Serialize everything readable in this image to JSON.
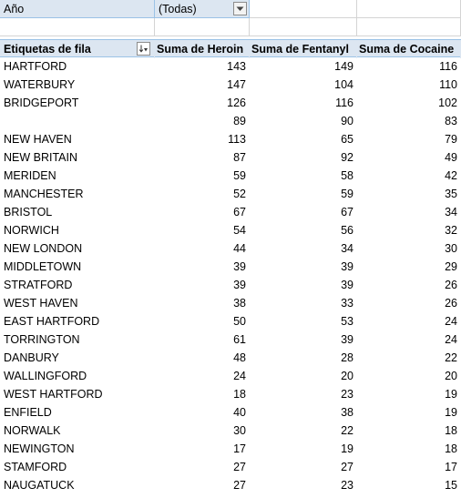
{
  "filter": {
    "field_label": "Año",
    "selected_value": "(Todas)"
  },
  "headers": {
    "row_labels": "Etiquetas de fila",
    "heroin": "Suma de Heroin",
    "fentanyl": "Suma de Fentanyl",
    "cocaine": "Suma de Cocaine"
  },
  "rows": [
    {
      "label": "HARTFORD",
      "heroin": "143",
      "fentanyl": "149",
      "cocaine": "116"
    },
    {
      "label": "WATERBURY",
      "heroin": "147",
      "fentanyl": "104",
      "cocaine": "110"
    },
    {
      "label": "BRIDGEPORT",
      "heroin": "126",
      "fentanyl": "116",
      "cocaine": "102"
    },
    {
      "label": "",
      "heroin": "89",
      "fentanyl": "90",
      "cocaine": "83"
    },
    {
      "label": "NEW HAVEN",
      "heroin": "113",
      "fentanyl": "65",
      "cocaine": "79"
    },
    {
      "label": "NEW BRITAIN",
      "heroin": "87",
      "fentanyl": "92",
      "cocaine": "49"
    },
    {
      "label": "MERIDEN",
      "heroin": "59",
      "fentanyl": "58",
      "cocaine": "42"
    },
    {
      "label": "MANCHESTER",
      "heroin": "52",
      "fentanyl": "59",
      "cocaine": "35"
    },
    {
      "label": "BRISTOL",
      "heroin": "67",
      "fentanyl": "67",
      "cocaine": "34"
    },
    {
      "label": "NORWICH",
      "heroin": "54",
      "fentanyl": "56",
      "cocaine": "32"
    },
    {
      "label": "NEW LONDON",
      "heroin": "44",
      "fentanyl": "34",
      "cocaine": "30"
    },
    {
      "label": "MIDDLETOWN",
      "heroin": "39",
      "fentanyl": "39",
      "cocaine": "29"
    },
    {
      "label": "STRATFORD",
      "heroin": "39",
      "fentanyl": "39",
      "cocaine": "26"
    },
    {
      "label": "WEST HAVEN",
      "heroin": "38",
      "fentanyl": "33",
      "cocaine": "26"
    },
    {
      "label": "EAST HARTFORD",
      "heroin": "50",
      "fentanyl": "53",
      "cocaine": "24"
    },
    {
      "label": "TORRINGTON",
      "heroin": "61",
      "fentanyl": "39",
      "cocaine": "24"
    },
    {
      "label": "DANBURY",
      "heroin": "48",
      "fentanyl": "28",
      "cocaine": "22"
    },
    {
      "label": "WALLINGFORD",
      "heroin": "24",
      "fentanyl": "20",
      "cocaine": "20"
    },
    {
      "label": "WEST HARTFORD",
      "heroin": "18",
      "fentanyl": "23",
      "cocaine": "19"
    },
    {
      "label": "ENFIELD",
      "heroin": "40",
      "fentanyl": "38",
      "cocaine": "19"
    },
    {
      "label": "NORWALK",
      "heroin": "30",
      "fentanyl": "22",
      "cocaine": "18"
    },
    {
      "label": "NEWINGTON",
      "heroin": "17",
      "fentanyl": "19",
      "cocaine": "18"
    },
    {
      "label": "STAMFORD",
      "heroin": "27",
      "fentanyl": "27",
      "cocaine": "17"
    },
    {
      "label": "NAUGATUCK",
      "heroin": "27",
      "fentanyl": "23",
      "cocaine": "15"
    }
  ],
  "icons": {
    "filter_dropdown": "chevron-down-icon",
    "sort_filter": "sort-filter-icon"
  },
  "colors": {
    "header_fill": "#dce6f1",
    "header_border": "#9bc2e6",
    "gridline": "#d4d4d4"
  }
}
